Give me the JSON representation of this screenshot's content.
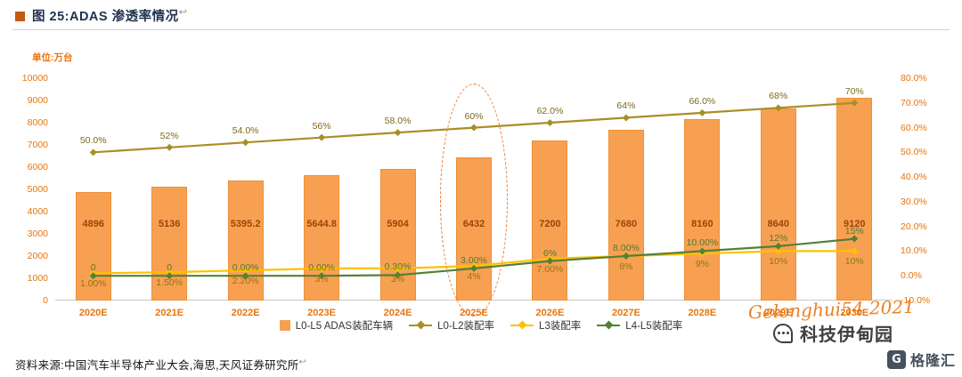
{
  "header": {
    "title": "图 25:ADAS 渗透率情况",
    "return_mark": "↩"
  },
  "chart_data": {
    "type": "bar+line",
    "title": "图 25:ADAS 渗透率情况",
    "unit_label": "单位:万台",
    "categories": [
      "2020E",
      "2021E",
      "2022E",
      "2023E",
      "2024E",
      "2025E",
      "2026E",
      "2027E",
      "2028E",
      "2029E",
      "2030E"
    ],
    "bar_series": {
      "name": "L0-L5 ADAS装配车辆",
      "color": "#F8A052",
      "label_color": "#9A4506",
      "axis": "left",
      "values": [
        4896,
        5136,
        5395.2,
        5644.8,
        5904,
        6432,
        7200,
        7680,
        8160,
        8640,
        9120
      ],
      "labels": [
        "4896",
        "5136",
        "5395.2",
        "5644.8",
        "5904",
        "6432",
        "7200",
        "7680",
        "8160",
        "8640",
        "9120"
      ]
    },
    "line_series": [
      {
        "name": "L0-L2装配率",
        "color": "#A98E26",
        "label_color": "#7C6A1C",
        "axis": "right",
        "label_position": "above",
        "values": [
          50,
          52,
          54,
          56,
          58,
          60,
          62,
          64,
          66,
          68,
          70
        ],
        "labels": [
          "50.0%",
          "52%",
          "54.0%",
          "56%",
          "58.0%",
          "60%",
          "62.0%",
          "64%",
          "66.0%",
          "68%",
          "70%"
        ]
      },
      {
        "name": "L3装配率",
        "color": "#FFC000",
        "label_color": "#8F7514",
        "axis": "right",
        "label_position": "below",
        "values": [
          1,
          1.5,
          2.2,
          3,
          3,
          4,
          7,
          8,
          9,
          10,
          10
        ],
        "labels": [
          "1.00%",
          "1.50%",
          "2.20%",
          "3%",
          "3%",
          "4%",
          "7.00%",
          "8%",
          "9%",
          "10%",
          "10%"
        ]
      },
      {
        "name": "L4-L5装配率",
        "color": "#538135",
        "label_color": "#4F7A2E",
        "axis": "right",
        "label_position": "above",
        "values": [
          0,
          0,
          0,
          0,
          0.3,
          3,
          6,
          8,
          10,
          12,
          15
        ],
        "labels": [
          "0",
          "0",
          "0.00%",
          "0.00%",
          "0.30%",
          "3.00%",
          "6%",
          "8.00%",
          "10.00%",
          "12%",
          "15%"
        ]
      }
    ],
    "left_axis": {
      "min": 0,
      "max": 10000,
      "step": 1000
    },
    "right_axis": {
      "min": -10,
      "max": 80,
      "step": 10,
      "suffix": "%",
      "decimals": 1
    },
    "axis_label_color": "#E8740C",
    "grid": "off",
    "legend_position": "bottom",
    "highlight": {
      "category": "2025E",
      "style": "dashed-ellipse",
      "color": "#ED7D31"
    }
  },
  "footer": {
    "source": "资料来源:中国汽车半导体产业大会,海思,天风证券研究所",
    "return_mark": "↩"
  },
  "watermarks": {
    "script_text": "Gelonghui54 2021",
    "account_name": "科技伊甸园",
    "logo_letter": "G",
    "logo_text": "格隆汇"
  }
}
